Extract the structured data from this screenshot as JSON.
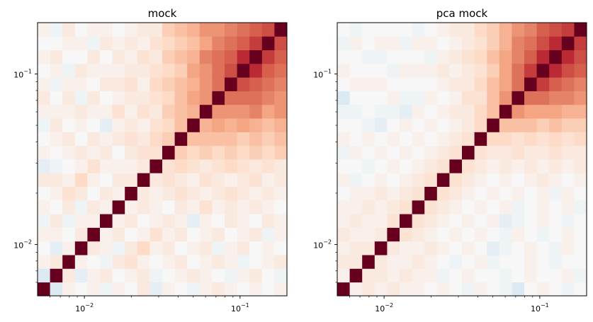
{
  "chart_data": [
    {
      "type": "heatmap",
      "title": "mock",
      "xscale": "log",
      "yscale": "log",
      "xlim": [
        0.005,
        0.2
      ],
      "ylim": [
        0.005,
        0.2
      ],
      "n_bins": 20,
      "colormap": "RdBu_r",
      "vmin": -1,
      "vmax": 1,
      "xticks": [
        {
          "base": "10",
          "exp": "−2",
          "value": 0.01
        },
        {
          "base": "10",
          "exp": "−1",
          "value": 0.1
        }
      ],
      "yticks": [
        {
          "base": "10",
          "exp": "−2",
          "value": 0.01
        },
        {
          "base": "10",
          "exp": "−1",
          "value": 0.1
        }
      ],
      "values": [
        [
          1.0,
          -0.15,
          0.05,
          0.0,
          0.05,
          -0.05,
          0.05,
          0.0,
          0.1,
          -0.1,
          0.05,
          0.0,
          -0.05,
          0.05,
          0.1,
          0.05,
          0.0,
          0.05,
          0.0,
          0.05
        ],
        [
          -0.15,
          1.0,
          0.1,
          -0.1,
          0.05,
          0.1,
          0.0,
          0.05,
          0.1,
          -0.05,
          0.0,
          0.05,
          0.1,
          0.05,
          0.0,
          -0.05,
          0.05,
          0.1,
          0.0,
          -0.05
        ],
        [
          0.05,
          0.1,
          1.0,
          0.05,
          0.0,
          -0.05,
          0.1,
          0.15,
          0.05,
          0.0,
          0.05,
          0.1,
          0.0,
          0.05,
          0.1,
          0.05,
          -0.05,
          0.0,
          0.05,
          0.1
        ],
        [
          0.0,
          -0.1,
          0.05,
          1.0,
          0.1,
          0.05,
          -0.05,
          0.1,
          0.2,
          0.05,
          0.1,
          0.0,
          0.05,
          0.1,
          -0.05,
          0.05,
          0.1,
          0.0,
          0.05,
          0.0
        ],
        [
          0.05,
          0.05,
          0.0,
          0.1,
          1.0,
          0.05,
          0.1,
          0.0,
          0.05,
          0.15,
          0.05,
          0.1,
          0.0,
          0.05,
          0.1,
          0.0,
          0.05,
          0.1,
          -0.05,
          0.05
        ],
        [
          -0.05,
          0.1,
          -0.05,
          0.05,
          0.05,
          1.0,
          0.05,
          0.1,
          0.0,
          0.05,
          0.1,
          0.05,
          -0.1,
          0.05,
          0.0,
          0.1,
          0.05,
          0.0,
          0.1,
          0.05
        ],
        [
          0.05,
          0.0,
          0.1,
          -0.05,
          0.1,
          0.05,
          1.0,
          0.05,
          0.1,
          0.05,
          0.0,
          0.1,
          0.05,
          0.15,
          0.05,
          0.1,
          0.05,
          0.1,
          0.05,
          0.0
        ],
        [
          0.0,
          0.05,
          0.15,
          0.1,
          0.0,
          0.1,
          0.05,
          1.0,
          0.1,
          0.05,
          0.1,
          0.15,
          0.1,
          0.05,
          0.1,
          0.15,
          0.1,
          0.05,
          0.1,
          0.05
        ],
        [
          0.1,
          0.1,
          0.05,
          0.2,
          0.05,
          0.0,
          0.1,
          0.1,
          1.0,
          0.1,
          0.15,
          0.1,
          0.05,
          0.15,
          0.1,
          0.05,
          0.1,
          0.15,
          0.05,
          0.1
        ],
        [
          -0.1,
          -0.05,
          0.0,
          0.05,
          0.15,
          0.05,
          0.05,
          0.05,
          0.1,
          1.0,
          0.15,
          0.2,
          0.15,
          0.1,
          0.15,
          0.2,
          0.15,
          0.1,
          0.15,
          0.1
        ],
        [
          0.05,
          0.0,
          0.05,
          0.1,
          0.05,
          0.1,
          0.0,
          0.1,
          0.15,
          0.15,
          1.0,
          0.25,
          0.2,
          0.25,
          0.2,
          0.25,
          0.2,
          0.25,
          0.2,
          0.25
        ],
        [
          0.0,
          0.05,
          0.1,
          0.0,
          0.1,
          0.05,
          0.1,
          0.15,
          0.1,
          0.2,
          0.25,
          1.0,
          0.3,
          0.3,
          0.3,
          0.3,
          0.25,
          0.3,
          0.25,
          0.3
        ],
        [
          -0.05,
          0.1,
          0.0,
          0.05,
          0.0,
          -0.1,
          0.05,
          0.1,
          0.05,
          0.15,
          0.2,
          0.3,
          1.0,
          0.35,
          0.4,
          0.35,
          0.4,
          0.35,
          0.3,
          0.35
        ],
        [
          0.05,
          0.05,
          0.05,
          0.1,
          0.05,
          0.05,
          0.15,
          0.05,
          0.15,
          0.1,
          0.25,
          0.3,
          0.35,
          1.0,
          0.45,
          0.45,
          0.45,
          0.5,
          0.4,
          0.45
        ],
        [
          0.1,
          0.0,
          0.1,
          -0.05,
          0.1,
          0.0,
          0.05,
          0.1,
          0.1,
          0.15,
          0.2,
          0.3,
          0.4,
          0.45,
          1.0,
          0.55,
          0.55,
          0.55,
          0.5,
          0.45
        ],
        [
          0.05,
          -0.05,
          0.05,
          0.05,
          0.0,
          0.1,
          0.1,
          0.15,
          0.05,
          0.2,
          0.25,
          0.3,
          0.35,
          0.45,
          0.55,
          1.0,
          0.65,
          0.6,
          0.55,
          0.5
        ],
        [
          0.0,
          0.05,
          -0.05,
          0.1,
          0.05,
          0.05,
          0.05,
          0.1,
          0.1,
          0.15,
          0.2,
          0.25,
          0.4,
          0.45,
          0.55,
          0.65,
          1.0,
          0.75,
          0.6,
          0.55
        ],
        [
          0.05,
          0.1,
          0.0,
          0.0,
          0.1,
          0.0,
          0.1,
          0.05,
          0.15,
          0.1,
          0.25,
          0.3,
          0.35,
          0.5,
          0.55,
          0.6,
          0.75,
          1.0,
          0.7,
          0.6
        ],
        [
          0.0,
          0.0,
          0.05,
          0.05,
          -0.05,
          0.1,
          0.05,
          0.1,
          0.05,
          0.15,
          0.2,
          0.25,
          0.3,
          0.4,
          0.5,
          0.55,
          0.6,
          0.7,
          1.0,
          0.65
        ],
        [
          0.05,
          -0.05,
          0.1,
          0.0,
          0.05,
          0.05,
          0.0,
          0.05,
          0.1,
          0.1,
          0.25,
          0.3,
          0.35,
          0.45,
          0.45,
          0.5,
          0.55,
          0.6,
          0.65,
          1.0
        ]
      ]
    },
    {
      "type": "heatmap",
      "title": "pca mock",
      "xscale": "log",
      "yscale": "log",
      "xlim": [
        0.005,
        0.2
      ],
      "ylim": [
        0.005,
        0.2
      ],
      "n_bins": 20,
      "colormap": "RdBu_r",
      "vmin": -1,
      "vmax": 1,
      "xticks": [
        {
          "base": "10",
          "exp": "−2",
          "value": 0.01
        },
        {
          "base": "10",
          "exp": "−1",
          "value": 0.1
        }
      ],
      "yticks": [
        {
          "base": "10",
          "exp": "−2",
          "value": 0.01
        },
        {
          "base": "10",
          "exp": "−1",
          "value": 0.1
        }
      ],
      "values": [
        [
          1.0,
          0.05,
          0.1,
          0.05,
          0.1,
          0.05,
          0.05,
          0.0,
          0.05,
          0.0,
          -0.05,
          0.05,
          0.0,
          -0.05,
          -0.15,
          0.0,
          0.05,
          0.0,
          -0.05,
          0.0
        ],
        [
          0.05,
          1.0,
          0.1,
          0.1,
          0.05,
          0.1,
          0.05,
          0.05,
          -0.05,
          0.0,
          0.05,
          0.0,
          0.0,
          -0.05,
          0.0,
          0.05,
          0.0,
          0.0,
          0.05,
          -0.05
        ],
        [
          0.1,
          0.1,
          1.0,
          0.1,
          0.05,
          0.05,
          0.1,
          0.05,
          0.0,
          -0.05,
          0.0,
          0.05,
          -0.05,
          0.0,
          0.0,
          0.05,
          0.0,
          -0.05,
          0.0,
          0.0
        ],
        [
          0.05,
          0.1,
          0.1,
          1.0,
          0.1,
          0.05,
          0.05,
          0.1,
          0.05,
          0.0,
          0.05,
          0.0,
          -0.1,
          -0.05,
          0.0,
          0.05,
          0.0,
          -0.05,
          0.05,
          0.0
        ],
        [
          0.1,
          0.05,
          0.05,
          0.1,
          1.0,
          0.15,
          0.1,
          0.05,
          0.0,
          0.05,
          0.0,
          0.05,
          0.0,
          -0.05,
          0.05,
          0.0,
          -0.05,
          0.0,
          0.05,
          0.0
        ],
        [
          0.05,
          0.1,
          0.05,
          0.05,
          0.15,
          1.0,
          0.15,
          0.1,
          0.05,
          0.0,
          0.05,
          0.0,
          0.05,
          -0.1,
          -0.05,
          0.0,
          0.05,
          0.0,
          -0.05,
          0.0
        ],
        [
          0.05,
          0.05,
          0.1,
          0.05,
          0.1,
          0.15,
          1.0,
          0.15,
          0.1,
          0.05,
          0.0,
          0.05,
          0.0,
          0.05,
          -0.05,
          0.0,
          0.05,
          0.0,
          0.05,
          -0.05
        ],
        [
          0.0,
          0.05,
          0.05,
          0.1,
          0.05,
          0.1,
          0.15,
          1.0,
          0.15,
          0.1,
          0.05,
          0.0,
          0.05,
          0.0,
          0.05,
          0.0,
          0.05,
          -0.05,
          0.05,
          0.0
        ],
        [
          0.05,
          -0.05,
          0.0,
          0.05,
          0.0,
          0.05,
          0.1,
          0.15,
          1.0,
          0.15,
          0.1,
          0.05,
          0.0,
          0.05,
          0.0,
          0.05,
          0.1,
          0.05,
          0.0,
          0.05
        ],
        [
          0.0,
          0.0,
          -0.05,
          0.0,
          0.05,
          0.0,
          0.05,
          0.1,
          0.15,
          1.0,
          0.15,
          0.1,
          0.05,
          0.1,
          0.05,
          0.1,
          0.05,
          0.1,
          0.05,
          0.1
        ],
        [
          -0.05,
          0.05,
          0.0,
          0.05,
          0.0,
          0.05,
          0.0,
          0.05,
          0.1,
          0.15,
          1.0,
          0.15,
          0.1,
          0.1,
          0.15,
          0.1,
          0.1,
          0.15,
          0.1,
          0.1
        ],
        [
          0.05,
          0.0,
          0.05,
          0.0,
          0.05,
          0.0,
          0.05,
          0.0,
          0.05,
          0.1,
          0.15,
          1.0,
          0.2,
          0.2,
          0.15,
          0.2,
          0.15,
          0.2,
          0.15,
          0.2
        ],
        [
          0.0,
          0.0,
          -0.05,
          -0.1,
          0.0,
          0.05,
          0.0,
          0.05,
          0.0,
          0.05,
          0.1,
          0.2,
          1.0,
          0.3,
          0.3,
          0.3,
          0.25,
          0.3,
          0.25,
          0.25
        ],
        [
          -0.05,
          -0.05,
          0.0,
          -0.05,
          -0.05,
          -0.1,
          0.05,
          0.0,
          0.05,
          0.1,
          0.1,
          0.2,
          0.3,
          1.0,
          0.45,
          0.4,
          0.4,
          0.4,
          0.35,
          0.35
        ],
        [
          -0.15,
          0.0,
          0.0,
          0.0,
          0.05,
          -0.05,
          -0.05,
          0.05,
          0.0,
          0.05,
          0.15,
          0.15,
          0.3,
          0.45,
          1.0,
          0.55,
          0.55,
          0.5,
          0.5,
          0.45
        ],
        [
          0.0,
          0.05,
          0.05,
          0.05,
          0.0,
          0.0,
          0.0,
          0.0,
          0.05,
          0.1,
          0.1,
          0.2,
          0.3,
          0.4,
          0.55,
          1.0,
          0.7,
          0.6,
          0.55,
          0.5
        ],
        [
          0.05,
          0.0,
          0.0,
          0.0,
          -0.05,
          0.05,
          0.05,
          0.05,
          0.1,
          0.05,
          0.1,
          0.15,
          0.25,
          0.4,
          0.55,
          0.7,
          1.0,
          0.75,
          0.65,
          0.6
        ],
        [
          0.0,
          0.0,
          -0.05,
          -0.05,
          0.0,
          0.0,
          0.0,
          -0.05,
          0.05,
          0.1,
          0.15,
          0.2,
          0.3,
          0.4,
          0.5,
          0.6,
          0.75,
          1.0,
          0.75,
          0.65
        ],
        [
          -0.05,
          0.05,
          0.0,
          0.05,
          0.05,
          -0.05,
          0.05,
          0.05,
          0.0,
          0.05,
          0.1,
          0.15,
          0.25,
          0.35,
          0.5,
          0.55,
          0.65,
          0.75,
          1.0,
          0.7
        ],
        [
          0.0,
          -0.05,
          0.0,
          0.0,
          0.0,
          0.0,
          -0.05,
          0.0,
          0.05,
          0.1,
          0.1,
          0.2,
          0.25,
          0.35,
          0.45,
          0.5,
          0.6,
          0.65,
          0.7,
          1.0
        ]
      ]
    }
  ]
}
